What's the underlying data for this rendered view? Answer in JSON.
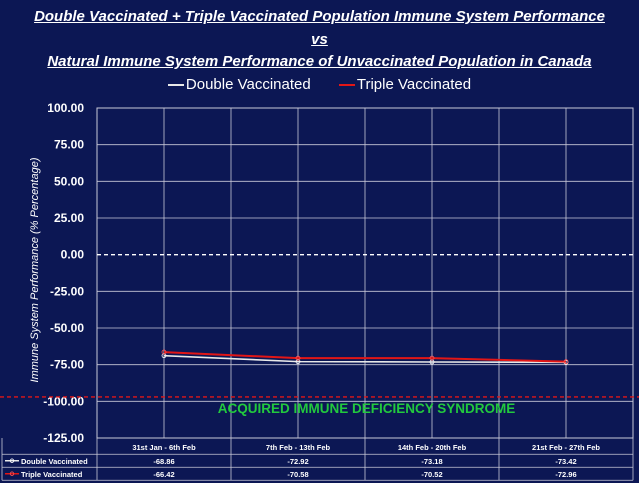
{
  "title_lines": [
    "Double Vaccinated + Triple Vaccinated Population Immune System Performance",
    "vs",
    "Natural Immune System Performance of Unvaccinated Population in Canada"
  ],
  "chart_data": {
    "type": "line",
    "categories": [
      "31st Jan - 6th Feb",
      "7th Feb - 13th Feb",
      "14th Feb - 20th Feb",
      "21st Feb - 27th Feb"
    ],
    "series": [
      {
        "name": "Double Vaccinated",
        "values": [
          -68.86,
          -72.92,
          -73.18,
          -73.42
        ],
        "labels": [
          "-68.86",
          "-72.92",
          "-73.18",
          "-73.42"
        ],
        "color": "#e8e8e8",
        "marker": "#ffffff"
      },
      {
        "name": "Triple Vaccinated",
        "values": [
          -66.42,
          -70.58,
          -70.52,
          -72.96
        ],
        "labels": [
          "-66.42",
          "-70.58",
          "-70.52",
          "-72.96"
        ],
        "color": "#e21616",
        "marker": "#ff5555"
      }
    ],
    "ylabel": "Immune System Performance (% Percentage)",
    "ylim": [
      -125,
      100
    ],
    "yticks": [
      100,
      75,
      50,
      25,
      0,
      -25,
      -50,
      -75,
      -100,
      -125
    ],
    "ytick_labels": [
      "100.00",
      "75.00",
      "50.00",
      "25.00",
      "0.00",
      "-25.00",
      "-50.00",
      "-75.00",
      "-100.00",
      "-125.00"
    ],
    "reference_lines": [
      {
        "value": 0,
        "color": "#ffffff",
        "style": "dashed"
      },
      {
        "value": -97,
        "color": "#e21616",
        "style": "dashed"
      }
    ],
    "annotation": "ACQUIRED IMMUNE DEFICIENCY SYNDROME",
    "annotation_color": "#22c93e",
    "grid": true,
    "legend_position": "top-center",
    "data_table": true
  }
}
